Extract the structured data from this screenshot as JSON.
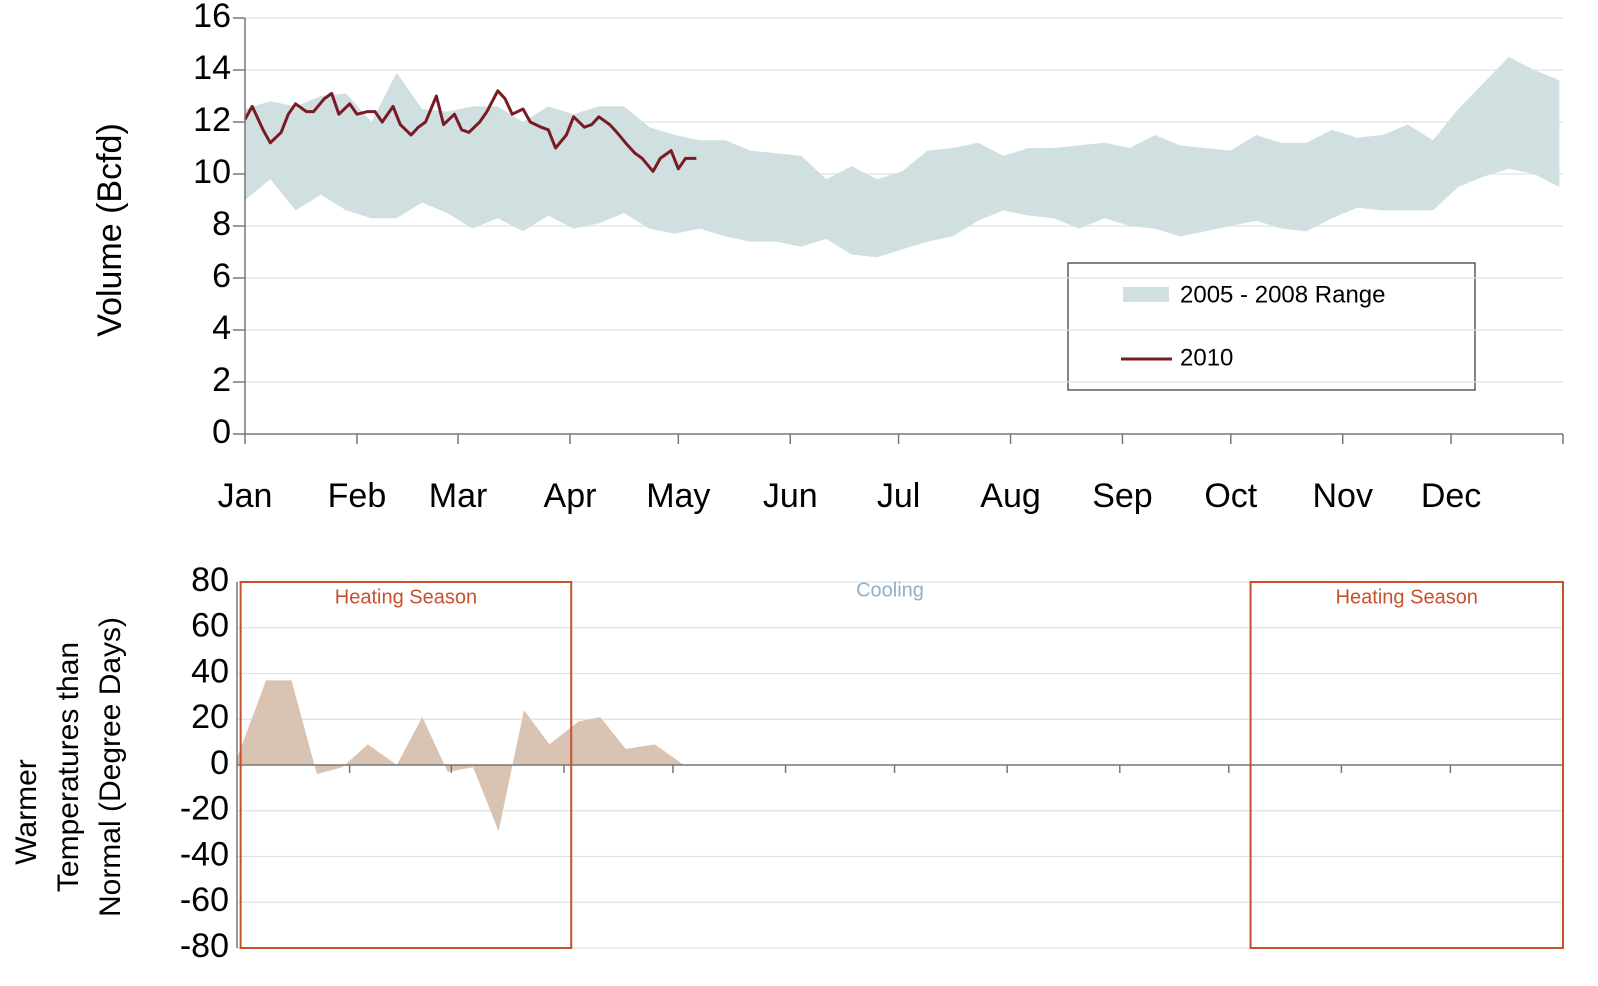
{
  "chart_data": [
    {
      "type": "line",
      "ylabel": "Volume (Bcfd)",
      "xlim": [
        0,
        365
      ],
      "xticks": [
        {
          "value": 0,
          "label": "Jan"
        },
        {
          "value": 31,
          "label": "Feb"
        },
        {
          "value": 59,
          "label": "Mar"
        },
        {
          "value": 90,
          "label": "Apr"
        },
        {
          "value": 120,
          "label": "May"
        },
        {
          "value": 151,
          "label": "Jun"
        },
        {
          "value": 181,
          "label": "Jul"
        },
        {
          "value": 212,
          "label": "Aug"
        },
        {
          "value": 243,
          "label": "Sep"
        },
        {
          "value": 273,
          "label": "Oct"
        },
        {
          "value": 304,
          "label": "Nov"
        },
        {
          "value": 334,
          "label": "Dec"
        }
      ],
      "ylim": [
        0,
        16
      ],
      "yticks": [
        0,
        2,
        4,
        6,
        8,
        10,
        12,
        14,
        16
      ],
      "grid": true,
      "series": [
        {
          "name": "2005 - 2008 Range",
          "color": "#d0e0e1",
          "x": [
            0,
            7,
            14,
            21,
            28,
            35,
            42,
            49,
            56,
            63,
            70,
            77,
            84,
            91,
            98,
            105,
            112,
            119,
            126,
            133,
            140,
            147,
            154,
            161,
            168,
            175,
            182,
            189,
            196,
            203,
            210,
            217,
            224,
            231,
            238,
            245,
            252,
            259,
            266,
            273,
            280,
            287,
            294,
            301,
            308,
            315,
            322,
            329,
            336,
            343,
            350,
            357,
            364
          ],
          "low": [
            9.0,
            9.8,
            8.6,
            9.2,
            8.6,
            8.3,
            8.3,
            8.9,
            8.5,
            7.9,
            8.3,
            7.8,
            8.4,
            7.9,
            8.1,
            8.5,
            7.9,
            7.7,
            7.9,
            7.6,
            7.4,
            7.4,
            7.2,
            7.5,
            6.9,
            6.8,
            7.1,
            7.4,
            7.6,
            8.2,
            8.6,
            8.4,
            8.3,
            7.9,
            8.3,
            8.0,
            7.9,
            7.6,
            7.8,
            8.0,
            8.2,
            7.9,
            7.8,
            8.3,
            8.7,
            8.6,
            8.6,
            8.6,
            9.5,
            9.9,
            10.2,
            10.0,
            9.5
          ],
          "high": [
            12.5,
            12.8,
            12.6,
            13.0,
            13.1,
            12.0,
            13.9,
            12.5,
            12.4,
            12.6,
            12.6,
            12.0,
            12.6,
            12.3,
            12.6,
            12.6,
            11.8,
            11.5,
            11.3,
            11.3,
            10.9,
            10.8,
            10.7,
            9.8,
            10.3,
            9.8,
            10.1,
            10.9,
            11.0,
            11.2,
            10.7,
            11.0,
            11.0,
            11.1,
            11.2,
            11.0,
            11.5,
            11.1,
            11.0,
            10.9,
            11.5,
            11.2,
            11.2,
            11.7,
            11.4,
            11.5,
            11.9,
            11.3,
            12.5,
            13.5,
            14.5,
            14.0,
            13.6
          ]
        },
        {
          "name": "2010",
          "color": "#7a1a24",
          "x": [
            0,
            2,
            5,
            7,
            10,
            12,
            14,
            17,
            19,
            22,
            24,
            26,
            29,
            31,
            34,
            36,
            38,
            41,
            43,
            46,
            48,
            50,
            53,
            55,
            58,
            60,
            62,
            65,
            67,
            70,
            72,
            74,
            77,
            79,
            82,
            84,
            86,
            89,
            91,
            94,
            96,
            98,
            101,
            103,
            106,
            108,
            110,
            113,
            115,
            118,
            120,
            122,
            125
          ],
          "values": [
            12.1,
            12.6,
            11.7,
            11.2,
            11.6,
            12.3,
            12.7,
            12.4,
            12.4,
            12.9,
            13.1,
            12.3,
            12.7,
            12.3,
            12.4,
            12.4,
            12.0,
            12.6,
            11.9,
            11.5,
            11.8,
            12.0,
            13.0,
            11.9,
            12.3,
            11.7,
            11.6,
            12.0,
            12.4,
            13.2,
            12.9,
            12.3,
            12.5,
            12.0,
            11.8,
            11.7,
            11.0,
            11.5,
            12.2,
            11.8,
            11.9,
            12.2,
            11.9,
            11.6,
            11.1,
            10.8,
            10.6,
            10.1,
            10.6,
            10.9,
            10.2,
            10.6,
            10.6
          ]
        }
      ]
    },
    {
      "type": "area",
      "ylabel": [
        "Warmer",
        "Temperatures than",
        "Normal (Degree Days)"
      ],
      "xlim": [
        0,
        365
      ],
      "ylim": [
        -80,
        80
      ],
      "yticks": [
        -80,
        -60,
        -40,
        -20,
        0,
        20,
        40,
        60,
        80
      ],
      "grid": true,
      "color": "#d9c3b3",
      "x": [
        0,
        8,
        15,
        22,
        29,
        36,
        44,
        51,
        58,
        65,
        72,
        79,
        86,
        94,
        100,
        107,
        115,
        123
      ],
      "values": [
        3,
        37,
        37,
        -4,
        -1,
        9,
        0,
        21,
        -3,
        -1,
        -29,
        24,
        9,
        19,
        21,
        7,
        9,
        0
      ],
      "annotations": [
        {
          "text": "Heating Season",
          "color": "#c8502a",
          "x": [
            1,
            92
          ]
        },
        {
          "text": "Cooling",
          "color": "#8fb0c8"
        },
        {
          "text": "Heating Season",
          "color": "#c8502a",
          "x": [
            279,
            365
          ]
        }
      ]
    }
  ]
}
